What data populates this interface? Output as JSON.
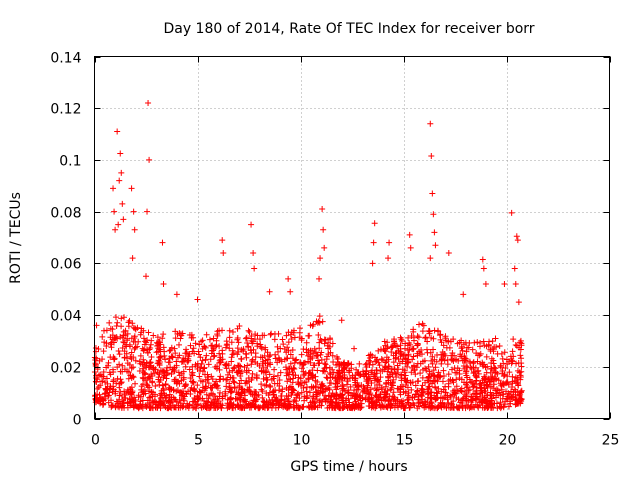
{
  "chart_data": {
    "type": "scatter",
    "title": "Day 180 of 2014, Rate Of TEC Index for receiver borr",
    "xlabel": "GPS time / hours",
    "ylabel": "ROTI / TECUs",
    "xlim": [
      0,
      25
    ],
    "ylim": [
      0,
      0.14
    ],
    "x_ticks": [
      0,
      5,
      10,
      15,
      20,
      25
    ],
    "x_tick_labels": [
      "0",
      "5",
      "10",
      "15",
      "20",
      "25"
    ],
    "y_ticks": [
      0,
      0.02,
      0.04,
      0.06,
      0.08,
      0.1,
      0.12,
      0.14
    ],
    "y_tick_labels": [
      "0",
      "0.02",
      "0.04",
      "0.06",
      "0.08",
      "0.1",
      "0.12",
      "0.14"
    ],
    "grid": true,
    "marker": "+",
    "color": "#ff0000",
    "series": [
      {
        "name": "ROTI",
        "points": [
          [
            1.1,
            0.111
          ],
          [
            1.25,
            0.1025
          ],
          [
            1.3,
            0.095
          ],
          [
            1.2,
            0.092
          ],
          [
            1.35,
            0.083
          ],
          [
            1.4,
            0.077
          ],
          [
            1.15,
            0.075
          ],
          [
            0.9,
            0.089
          ],
          [
            0.95,
            0.08
          ],
          [
            1.0,
            0.073
          ],
          [
            1.8,
            0.089
          ],
          [
            1.9,
            0.08
          ],
          [
            1.95,
            0.073
          ],
          [
            1.85,
            0.062
          ],
          [
            2.6,
            0.122
          ],
          [
            2.65,
            0.1
          ],
          [
            2.55,
            0.08
          ],
          [
            2.5,
            0.055
          ],
          [
            3.3,
            0.068
          ],
          [
            3.35,
            0.052
          ],
          [
            6.2,
            0.069
          ],
          [
            6.25,
            0.064
          ],
          [
            7.6,
            0.075
          ],
          [
            7.7,
            0.064
          ],
          [
            7.75,
            0.058
          ],
          [
            11.05,
            0.081
          ],
          [
            11.1,
            0.073
          ],
          [
            11.15,
            0.066
          ],
          [
            10.95,
            0.062
          ],
          [
            10.9,
            0.054
          ],
          [
            13.6,
            0.0755
          ],
          [
            13.55,
            0.068
          ],
          [
            13.5,
            0.06
          ],
          [
            14.3,
            0.068
          ],
          [
            14.25,
            0.062
          ],
          [
            15.3,
            0.071
          ],
          [
            15.35,
            0.066
          ],
          [
            16.3,
            0.114
          ],
          [
            16.35,
            0.1015
          ],
          [
            16.4,
            0.087
          ],
          [
            16.45,
            0.079
          ],
          [
            16.5,
            0.072
          ],
          [
            16.55,
            0.067
          ],
          [
            16.3,
            0.062
          ],
          [
            17.2,
            0.064
          ],
          [
            18.85,
            0.0615
          ],
          [
            18.9,
            0.058
          ],
          [
            19.9,
            0.052
          ],
          [
            20.25,
            0.0795
          ],
          [
            20.5,
            0.0705
          ],
          [
            20.55,
            0.069
          ],
          [
            20.4,
            0.058
          ],
          [
            20.45,
            0.052
          ],
          [
            4.0,
            0.048
          ],
          [
            5.0,
            0.046
          ],
          [
            8.5,
            0.049
          ],
          [
            9.4,
            0.054
          ],
          [
            9.5,
            0.049
          ],
          [
            12.0,
            0.038
          ],
          [
            12.6,
            0.027
          ],
          [
            17.9,
            0.048
          ],
          [
            19.0,
            0.052
          ],
          [
            20.6,
            0.045
          ],
          [
            20.7,
            0.03
          ],
          [
            0.1,
            0.036
          ]
        ]
      }
    ],
    "bulk_density_profile": {
      "x": [
        0,
        1,
        2,
        3,
        4,
        5,
        6,
        7,
        8,
        9,
        10,
        11,
        12,
        13,
        14,
        15,
        16,
        17,
        18,
        19,
        20,
        20.75
      ],
      "y_low": [
        0.006,
        0.004,
        0.004,
        0.004,
        0.004,
        0.004,
        0.004,
        0.004,
        0.004,
        0.004,
        0.004,
        0.004,
        0.004,
        0.004,
        0.004,
        0.004,
        0.004,
        0.004,
        0.004,
        0.004,
        0.004,
        0.006
      ],
      "y_high": [
        0.03,
        0.042,
        0.036,
        0.032,
        0.034,
        0.032,
        0.034,
        0.036,
        0.032,
        0.034,
        0.036,
        0.04,
        0.022,
        0.022,
        0.03,
        0.032,
        0.038,
        0.032,
        0.03,
        0.03,
        0.032,
        0.03
      ],
      "description": "dense band of ROTI samples"
    }
  }
}
